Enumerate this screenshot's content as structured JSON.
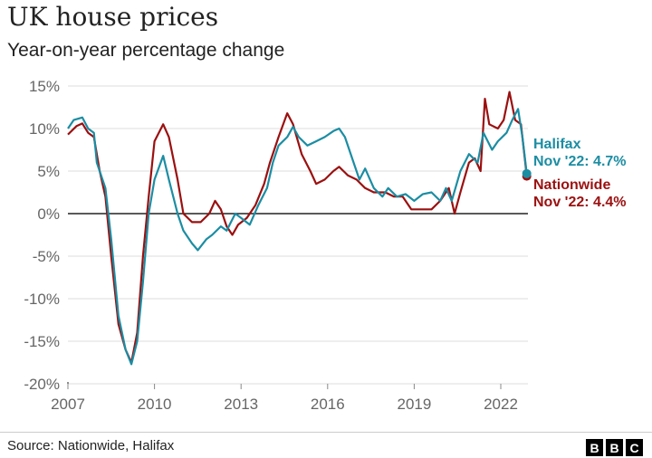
{
  "chart_data": {
    "type": "line",
    "title": "UK house prices",
    "subtitle": "Year-on-year percentage change",
    "xlabel": "",
    "ylabel": "",
    "xlim": [
      2007,
      2022.95
    ],
    "ylim": [
      -20,
      15
    ],
    "x_ticks": [
      "2007",
      "2010",
      "2013",
      "2016",
      "2019",
      "2022"
    ],
    "y_ticks": [
      "15%",
      "10%",
      "5%",
      "0%",
      "-5%",
      "-10%",
      "-15%",
      "-20%"
    ],
    "grid": true,
    "series": [
      {
        "name": "Halifax",
        "color": "#1b8da3",
        "end_label": "Nov '22: 4.7%",
        "x": [
          2007.0,
          2007.2,
          2007.5,
          2007.7,
          2007.9,
          2008.0,
          2008.3,
          2008.5,
          2008.75,
          2009.0,
          2009.2,
          2009.4,
          2009.6,
          2009.8,
          2010.0,
          2010.3,
          2010.5,
          2010.8,
          2011.0,
          2011.3,
          2011.5,
          2011.8,
          2012.0,
          2012.3,
          2012.5,
          2012.8,
          2013.0,
          2013.3,
          2013.6,
          2013.9,
          2014.1,
          2014.3,
          2014.6,
          2014.8,
          2015.0,
          2015.3,
          2015.6,
          2015.9,
          2016.2,
          2016.4,
          2016.6,
          2016.9,
          2017.1,
          2017.3,
          2017.6,
          2017.9,
          2018.1,
          2018.4,
          2018.7,
          2019.0,
          2019.3,
          2019.6,
          2019.9,
          2020.1,
          2020.3,
          2020.6,
          2020.9,
          2021.2,
          2021.4,
          2021.7,
          2021.9,
          2022.2,
          2022.4,
          2022.6,
          2022.75,
          2022.9
        ],
        "y": [
          10,
          11,
          11.3,
          10,
          9.5,
          6,
          3,
          -3,
          -12,
          -16,
          -17.7,
          -15,
          -8,
          0,
          4,
          6.8,
          4,
          0,
          -2,
          -3.5,
          -4.3,
          -3,
          -2.5,
          -1.5,
          -2,
          0,
          -0.5,
          -1.3,
          1,
          3,
          6,
          8,
          9,
          10.2,
          9,
          8,
          8.5,
          9,
          9.7,
          10,
          9,
          6,
          4,
          5.3,
          3,
          2,
          3,
          2,
          2.3,
          1.5,
          2.3,
          2.5,
          1.5,
          3,
          1.5,
          5,
          7,
          6,
          9.5,
          7.5,
          8.5,
          9.5,
          11,
          12.3,
          9,
          4.7
        ]
      },
      {
        "name": "Nationwide",
        "color": "#9b1010",
        "end_label": "Nov '22: 4.4%",
        "x": [
          2007.0,
          2007.3,
          2007.5,
          2007.7,
          2007.9,
          2008.1,
          2008.3,
          2008.5,
          2008.75,
          2009.0,
          2009.2,
          2009.4,
          2009.6,
          2009.8,
          2010.0,
          2010.3,
          2010.5,
          2010.8,
          2011.0,
          2011.3,
          2011.6,
          2011.9,
          2012.1,
          2012.3,
          2012.5,
          2012.7,
          2012.9,
          2013.2,
          2013.5,
          2013.8,
          2014.0,
          2014.3,
          2014.6,
          2014.8,
          2015.1,
          2015.4,
          2015.6,
          2015.9,
          2016.2,
          2016.4,
          2016.7,
          2017.0,
          2017.3,
          2017.6,
          2018.0,
          2018.3,
          2018.6,
          2018.9,
          2019.2,
          2019.6,
          2019.9,
          2020.2,
          2020.4,
          2020.6,
          2020.9,
          2021.1,
          2021.3,
          2021.45,
          2021.6,
          2021.9,
          2022.1,
          2022.3,
          2022.5,
          2022.7,
          2022.9
        ],
        "y": [
          9.3,
          10.3,
          10.6,
          9.5,
          9,
          5,
          2,
          -5,
          -13,
          -16,
          -17.5,
          -14,
          -5,
          2,
          8.5,
          10.5,
          9,
          4,
          0,
          -1,
          -1,
          0,
          1.5,
          0.5,
          -1.5,
          -2.5,
          -1.3,
          -0.5,
          1,
          3.5,
          6,
          9,
          11.8,
          10.5,
          7,
          5,
          3.5,
          4,
          5,
          5.5,
          4.5,
          4,
          3,
          2.5,
          2.5,
          2,
          2,
          0.5,
          0.5,
          0.5,
          1.5,
          3,
          0,
          2.5,
          6,
          6.5,
          5,
          13.5,
          10.5,
          10,
          11,
          14.3,
          11,
          10.5,
          4.4
        ]
      }
    ]
  },
  "footer": {
    "source": "Source: Nationwide, Halifax",
    "logo": [
      "B",
      "B",
      "C"
    ]
  }
}
